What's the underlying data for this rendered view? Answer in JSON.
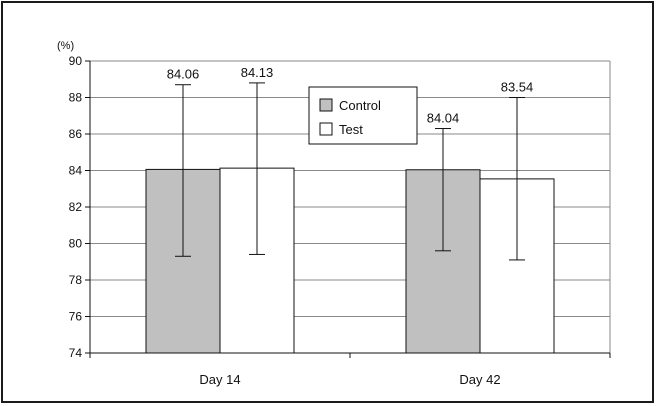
{
  "chart_data": {
    "type": "bar",
    "y_unit": "(%)",
    "categories": [
      "Day 14",
      "Day 42"
    ],
    "series": [
      {
        "name": "Control",
        "values": [
          84.06,
          84.04
        ],
        "error_low": [
          79.3,
          79.6
        ],
        "error_high": [
          88.7,
          86.3
        ],
        "color": "#c0c0c0"
      },
      {
        "name": "Test",
        "values": [
          84.13,
          83.54
        ],
        "error_low": [
          79.4,
          79.1
        ],
        "error_high": [
          88.8,
          88.0
        ],
        "color": "#ffffff"
      }
    ],
    "ylim": [
      74,
      90
    ],
    "yticks": [
      74,
      76,
      78,
      80,
      82,
      84,
      86,
      88,
      90
    ],
    "grid": true,
    "legend_position": "top-center"
  }
}
